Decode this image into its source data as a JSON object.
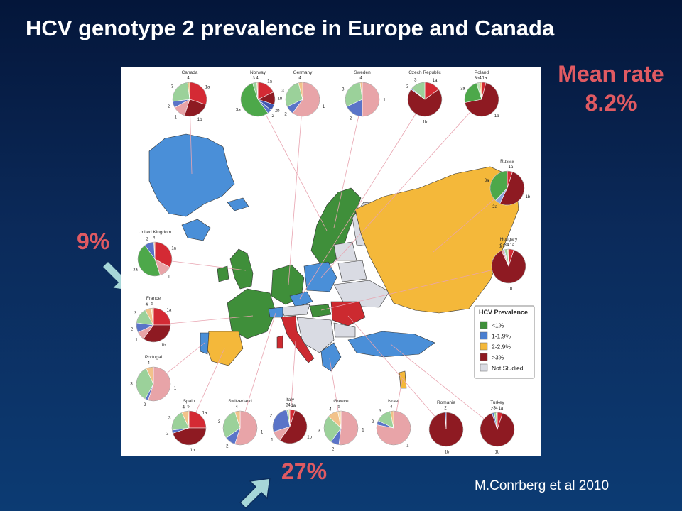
{
  "title": "HCV  genotype 2 prevalence in Europe and Canada",
  "mean_rate": {
    "label": "Mean rate",
    "value": "8.2%"
  },
  "annotations": {
    "uk_pct": "9%",
    "italy_pct": "27%"
  },
  "citation": "M.Conrberg et al 2010",
  "legend": {
    "title": "HCV Prevalence",
    "items": [
      {
        "label": "<1%",
        "color": "#3f8f3a"
      },
      {
        "label": "1-1.9%",
        "color": "#4a7fd0"
      },
      {
        "label": "2-2.9%",
        "color": "#f4b83a"
      },
      {
        "label": ">3%",
        "color": "#8e1a22"
      },
      {
        "label": "Not Studied",
        "color": "#d9dbe3"
      }
    ]
  },
  "chart_data": {
    "type": "pie",
    "genotype_colors": {
      "1a": "#d42a34",
      "1b": "#8e1a22",
      "1": "#e8a4a8",
      "2": "#5a74c8",
      "2a": "#8ea3dc",
      "2b": "#3f58b0",
      "3": "#9bd19a",
      "3a": "#4da84a",
      "3b": "#bfe3b8",
      "4": "#f2c28a",
      "5": "#f6dcae"
    },
    "pies": [
      {
        "name": "Canada",
        "slices": [
          {
            "g": "1a",
            "v": 30
          },
          {
            "g": "1b",
            "v": 25
          },
          {
            "g": "1",
            "v": 12
          },
          {
            "g": "2",
            "v": 6
          },
          {
            "g": "3",
            "v": 25
          },
          {
            "g": "4",
            "v": 2
          }
        ]
      },
      {
        "name": "Norway",
        "slices": [
          {
            "g": "1a",
            "v": 18
          },
          {
            "g": "1b",
            "v": 12
          },
          {
            "g": "2b",
            "v": 6
          },
          {
            "g": "2",
            "v": 4
          },
          {
            "g": "3a",
            "v": 55
          },
          {
            "g": "3",
            "v": 4
          },
          {
            "g": "4",
            "v": 1
          }
        ]
      },
      {
        "name": "Germany",
        "slices": [
          {
            "g": "1",
            "v": 60
          },
          {
            "g": "2",
            "v": 8
          },
          {
            "g": "3",
            "v": 28
          },
          {
            "g": "4",
            "v": 4
          }
        ]
      },
      {
        "name": "Sweden",
        "slices": [
          {
            "g": "1",
            "v": 50
          },
          {
            "g": "2",
            "v": 18
          },
          {
            "g": "3",
            "v": 30
          },
          {
            "g": "4",
            "v": 2
          }
        ]
      },
      {
        "name": "Czech Republic",
        "slices": [
          {
            "g": "1a",
            "v": 15
          },
          {
            "g": "1b",
            "v": 70
          },
          {
            "g": "2",
            "v": 1
          },
          {
            "g": "3",
            "v": 14
          }
        ]
      },
      {
        "name": "Poland",
        "slices": [
          {
            "g": "1a",
            "v": 4
          },
          {
            "g": "1b",
            "v": 68
          },
          {
            "g": "3a",
            "v": 23
          },
          {
            "g": "3b",
            "v": 3
          },
          {
            "g": "4",
            "v": 2
          }
        ]
      },
      {
        "name": "Russia",
        "slices": [
          {
            "g": "1a",
            "v": 5
          },
          {
            "g": "1b",
            "v": 52
          },
          {
            "g": "2a",
            "v": 5
          },
          {
            "g": "3a",
            "v": 38
          }
        ]
      },
      {
        "name": "Hungary",
        "slices": [
          {
            "g": "1a",
            "v": 5
          },
          {
            "g": "1b",
            "v": 88
          },
          {
            "g": "1",
            "v": 2
          },
          {
            "g": "2a",
            "v": 1
          },
          {
            "g": "3",
            "v": 3
          },
          {
            "g": "4",
            "v": 1
          }
        ]
      },
      {
        "name": "United Kingdom",
        "slices": [
          {
            "g": "1a",
            "v": 33
          },
          {
            "g": "1",
            "v": 12
          },
          {
            "g": "3a",
            "v": 45
          },
          {
            "g": "2",
            "v": 9
          },
          {
            "g": "4",
            "v": 1
          }
        ]
      },
      {
        "name": "France",
        "slices": [
          {
            "g": "1a",
            "v": 25
          },
          {
            "g": "1b",
            "v": 35
          },
          {
            "g": "1",
            "v": 8
          },
          {
            "g": "2",
            "v": 9
          },
          {
            "g": "3",
            "v": 15
          },
          {
            "g": "4",
            "v": 6
          },
          {
            "g": "5",
            "v": 2
          }
        ]
      },
      {
        "name": "Portugal",
        "slices": [
          {
            "g": "1",
            "v": 55
          },
          {
            "g": "2",
            "v": 3
          },
          {
            "g": "3",
            "v": 35
          },
          {
            "g": "4",
            "v": 7
          }
        ]
      },
      {
        "name": "Spain",
        "slices": [
          {
            "g": "1a",
            "v": 25
          },
          {
            "g": "1b",
            "v": 45
          },
          {
            "g": "2",
            "v": 3
          },
          {
            "g": "3",
            "v": 20
          },
          {
            "g": "4",
            "v": 6
          },
          {
            "g": "5",
            "v": 1
          }
        ]
      },
      {
        "name": "Switzerland",
        "slices": [
          {
            "g": "1",
            "v": 55
          },
          {
            "g": "2",
            "v": 10
          },
          {
            "g": "3",
            "v": 30
          },
          {
            "g": "4",
            "v": 5
          }
        ]
      },
      {
        "name": "Italy",
        "slices": [
          {
            "g": "1a",
            "v": 5
          },
          {
            "g": "1b",
            "v": 55
          },
          {
            "g": "1",
            "v": 10
          },
          {
            "g": "2",
            "v": 27
          },
          {
            "g": "3",
            "v": 2
          },
          {
            "g": "4",
            "v": 1
          }
        ]
      },
      {
        "name": "Greece",
        "slices": [
          {
            "g": "1",
            "v": 52
          },
          {
            "g": "2",
            "v": 8
          },
          {
            "g": "3",
            "v": 27
          },
          {
            "g": "4",
            "v": 10
          },
          {
            "g": "5",
            "v": 3
          }
        ]
      },
      {
        "name": "Israel",
        "slices": [
          {
            "g": "1",
            "v": 78
          },
          {
            "g": "2",
            "v": 4
          },
          {
            "g": "3",
            "v": 15
          },
          {
            "g": "4",
            "v": 3
          }
        ]
      },
      {
        "name": "Romania",
        "slices": [
          {
            "g": "1b",
            "v": 99
          },
          {
            "g": "2",
            "v": 1
          }
        ]
      },
      {
        "name": "Turkey",
        "slices": [
          {
            "g": "1a",
            "v": 5
          },
          {
            "g": "1b",
            "v": 90
          },
          {
            "g": "2",
            "v": 2
          },
          {
            "g": "3",
            "v": 2
          },
          {
            "g": "4",
            "v": 1
          }
        ]
      }
    ]
  }
}
